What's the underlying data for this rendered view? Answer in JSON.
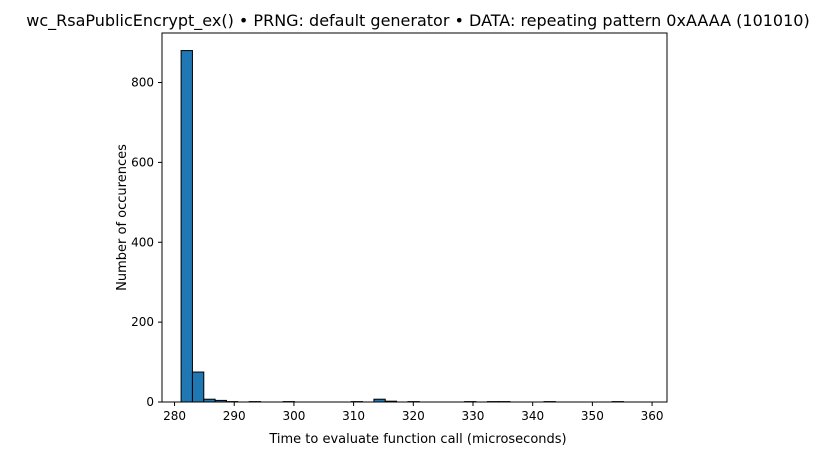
{
  "chart_data": {
    "type": "bar",
    "title": "wc_RsaPublicEncrypt_ex() • PRNG: default generator • DATA: repeating pattern 0xAAAA (101010)",
    "xlabel": "Time to evaluate function call (microseconds)",
    "ylabel": "Number of occurences",
    "xlim": [
      277.9,
      362.5
    ],
    "ylim": [
      0,
      924
    ],
    "xticks": [
      280,
      290,
      300,
      310,
      320,
      330,
      340,
      350,
      360
    ],
    "yticks": [
      0,
      200,
      400,
      600,
      800
    ],
    "bin_edges": [
      281.1,
      283.0,
      284.9,
      286.8,
      288.7,
      290.6,
      292.5,
      294.4,
      296.3,
      298.2,
      300.1,
      302.0,
      303.9,
      305.8,
      307.7,
      309.6,
      311.5,
      313.4,
      315.3,
      317.2,
      319.1,
      321.0,
      322.9,
      324.8,
      326.7,
      328.6,
      330.5,
      332.4,
      334.3,
      336.2,
      338.1,
      340.0,
      341.9,
      343.8,
      345.7,
      347.6,
      349.5,
      351.4,
      353.3,
      355.2,
      357.1,
      359.0
    ],
    "values": [
      880,
      75,
      7,
      4,
      1,
      0,
      1,
      0,
      0,
      1,
      0,
      0,
      0,
      0,
      0,
      1,
      0,
      7,
      2,
      0,
      1,
      0,
      0,
      0,
      0,
      1,
      0,
      1,
      1,
      0,
      0,
      0,
      1,
      0,
      0,
      0,
      0,
      0,
      1,
      0,
      0
    ],
    "bar_color": "#1f77b4",
    "edge_color": "#000000",
    "grid": false,
    "legend": "none"
  }
}
